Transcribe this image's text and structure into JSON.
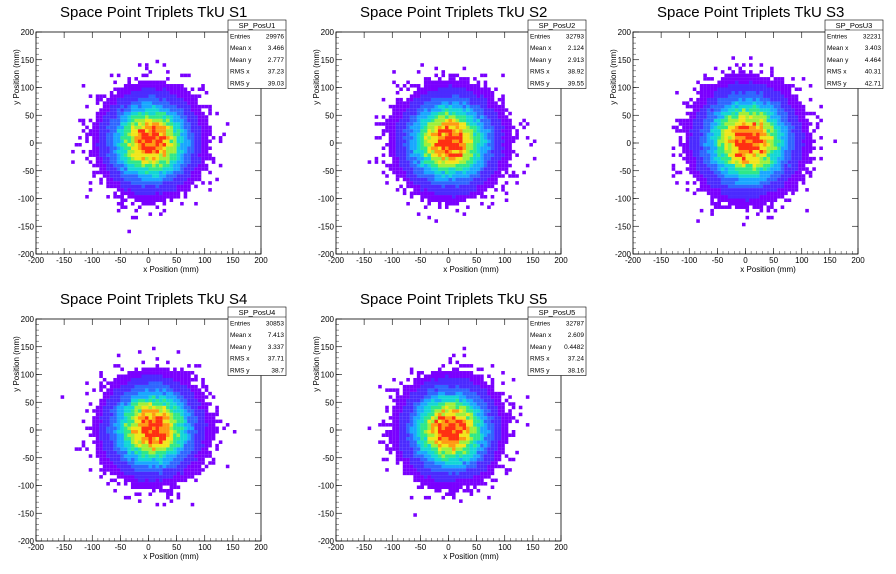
{
  "chart_data": [
    {
      "type": "heatmap",
      "title": "Space Point Triplets TkU S1",
      "xlabel": "x Position (mm)",
      "ylabel": "y Position (mm)",
      "xlim": [
        -200,
        200
      ],
      "ylim": [
        -200,
        200
      ],
      "xticks": [
        "-200",
        "-150",
        "-100",
        "-50",
        "0",
        "50",
        "100",
        "150",
        "200"
      ],
      "yticks": [
        "-200",
        "-150",
        "-100",
        "-50",
        "0",
        "50",
        "100",
        "150",
        "200"
      ],
      "stats": {
        "name": "SP_PosU1",
        "rows": [
          {
            "label": "Entries",
            "value": "29976"
          },
          {
            "label": "Mean x",
            "value": "3.466"
          },
          {
            "label": "Mean y",
            "value": "2.777"
          },
          {
            "label": "RMS x",
            "value": "37.23"
          },
          {
            "label": "RMS y",
            "value": "39.03"
          }
        ]
      },
      "distribution": {
        "mean_x": 3.466,
        "mean_y": 2.777,
        "rms_x": 37.23,
        "rms_y": 39.03,
        "entries": 29976
      }
    },
    {
      "type": "heatmap",
      "title": "Space Point Triplets TkU S2",
      "xlabel": "x Position (mm)",
      "ylabel": "y Position (mm)",
      "xlim": [
        -200,
        200
      ],
      "ylim": [
        -200,
        200
      ],
      "xticks": [
        "-200",
        "-150",
        "-100",
        "-50",
        "0",
        "50",
        "100",
        "150",
        "200"
      ],
      "yticks": [
        "-200",
        "-150",
        "-100",
        "-50",
        "0",
        "50",
        "100",
        "150",
        "200"
      ],
      "stats": {
        "name": "SP_PosU2",
        "rows": [
          {
            "label": "Entries",
            "value": "32793"
          },
          {
            "label": "Mean x",
            "value": "2.124"
          },
          {
            "label": "Mean y",
            "value": "2.913"
          },
          {
            "label": "RMS x",
            "value": "38.92"
          },
          {
            "label": "RMS y",
            "value": "39.55"
          }
        ]
      },
      "distribution": {
        "mean_x": 2.124,
        "mean_y": 2.913,
        "rms_x": 38.92,
        "rms_y": 39.55,
        "entries": 32793
      }
    },
    {
      "type": "heatmap",
      "title": "Space Point Triplets TkU S3",
      "xlabel": "x Position (mm)",
      "ylabel": "y Position (mm)",
      "xlim": [
        -200,
        200
      ],
      "ylim": [
        -200,
        200
      ],
      "xticks": [
        "-200",
        "-150",
        "-100",
        "-50",
        "0",
        "50",
        "100",
        "150",
        "200"
      ],
      "yticks": [
        "-200",
        "-150",
        "-100",
        "-50",
        "0",
        "50",
        "100",
        "150",
        "200"
      ],
      "stats": {
        "name": "SP_PosU3",
        "rows": [
          {
            "label": "Entries",
            "value": "32231"
          },
          {
            "label": "Mean x",
            "value": "3.403"
          },
          {
            "label": "Mean y",
            "value": "4.464"
          },
          {
            "label": "RMS x",
            "value": "40.31"
          },
          {
            "label": "RMS y",
            "value": "42.71"
          }
        ]
      },
      "distribution": {
        "mean_x": 3.403,
        "mean_y": 4.464,
        "rms_x": 40.31,
        "rms_y": 42.71,
        "entries": 32231
      }
    },
    {
      "type": "heatmap",
      "title": "Space Point Triplets TkU S4",
      "xlabel": "x Position (mm)",
      "ylabel": "y Position (mm)",
      "xlim": [
        -200,
        200
      ],
      "ylim": [
        -200,
        200
      ],
      "xticks": [
        "-200",
        "-150",
        "-100",
        "-50",
        "0",
        "50",
        "100",
        "150",
        "200"
      ],
      "yticks": [
        "-200",
        "-150",
        "-100",
        "-50",
        "0",
        "50",
        "100",
        "150",
        "200"
      ],
      "stats": {
        "name": "SP_PosU4",
        "rows": [
          {
            "label": "Entries",
            "value": "30853"
          },
          {
            "label": "Mean x",
            "value": "7.413"
          },
          {
            "label": "Mean y",
            "value": "3.337"
          },
          {
            "label": "RMS x",
            "value": "37.71"
          },
          {
            "label": "RMS y",
            "value": "38.7"
          }
        ]
      },
      "distribution": {
        "mean_x": 7.413,
        "mean_y": 3.337,
        "rms_x": 37.71,
        "rms_y": 38.7,
        "entries": 30853
      }
    },
    {
      "type": "heatmap",
      "title": "Space Point Triplets TkU S5",
      "xlabel": "x Position (mm)",
      "ylabel": "y Position (mm)",
      "xlim": [
        -200,
        200
      ],
      "ylim": [
        -200,
        200
      ],
      "xticks": [
        "-200",
        "-150",
        "-100",
        "-50",
        "0",
        "50",
        "100",
        "150",
        "200"
      ],
      "yticks": [
        "-200",
        "-150",
        "-100",
        "-50",
        "0",
        "50",
        "100",
        "150",
        "200"
      ],
      "stats": {
        "name": "SP_PosU5",
        "rows": [
          {
            "label": "Entries",
            "value": "32787"
          },
          {
            "label": "Mean x",
            "value": "2.609"
          },
          {
            "label": "Mean y",
            "value": "0.4482"
          },
          {
            "label": "RMS x",
            "value": "37.24"
          },
          {
            "label": "RMS y",
            "value": "38.16"
          }
        ]
      },
      "distribution": {
        "mean_x": 2.609,
        "mean_y": 0.4482,
        "rms_x": 37.24,
        "rms_y": 38.16,
        "entries": 32787
      }
    }
  ],
  "colors": {
    "palette": [
      "#7a00ff",
      "#4b2bff",
      "#2f66ff",
      "#19a7ff",
      "#12d6d6",
      "#2ee88a",
      "#9ef03a",
      "#f1e61b",
      "#ff9a12",
      "#ff2f12"
    ],
    "frame": "#000000",
    "background": "#ffffff"
  }
}
